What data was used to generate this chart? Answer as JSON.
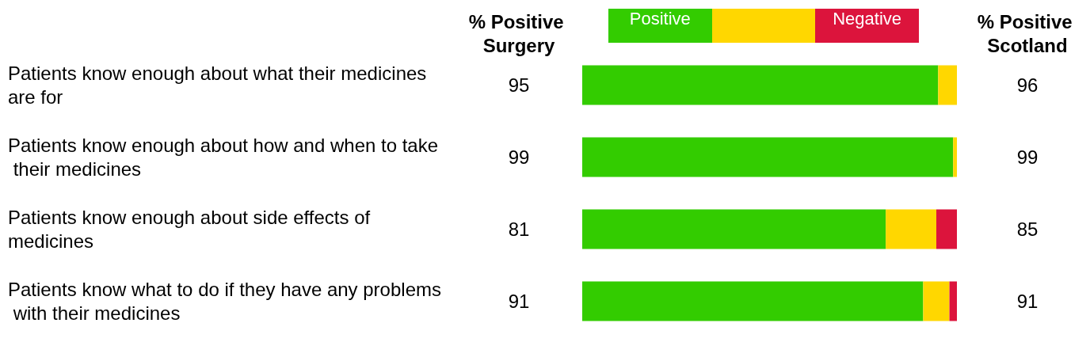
{
  "chart_data": {
    "type": "bar",
    "orientation": "horizontal",
    "stacked": true,
    "legend": "top",
    "tick_labels": "y",
    "xlim": [
      0,
      100
    ],
    "categories": [
      "Patients know enough about what their medicines are for",
      "Patients know enough about how and when to take their medicines",
      "Patients know enough about side effects of medicines",
      "Patients know what to do if they have any problems with their medicines"
    ],
    "series": [
      {
        "name": "Positive",
        "color": "#33cc00",
        "values": [
          95,
          99,
          81,
          91
        ],
        "value_labels": [
          "95",
          "99",
          "81",
          "91"
        ]
      },
      {
        "color": "#ffd700",
        "values": [
          5,
          1,
          13.5,
          7
        ]
      },
      {
        "name": "Negative",
        "color": "#dc143c",
        "values": [
          0,
          0,
          5.5,
          2
        ]
      }
    ],
    "annotations": [
      "% Positive Surgery",
      "% Positive Scotland",
      "96",
      "99",
      "85",
      "91"
    ]
  }
}
